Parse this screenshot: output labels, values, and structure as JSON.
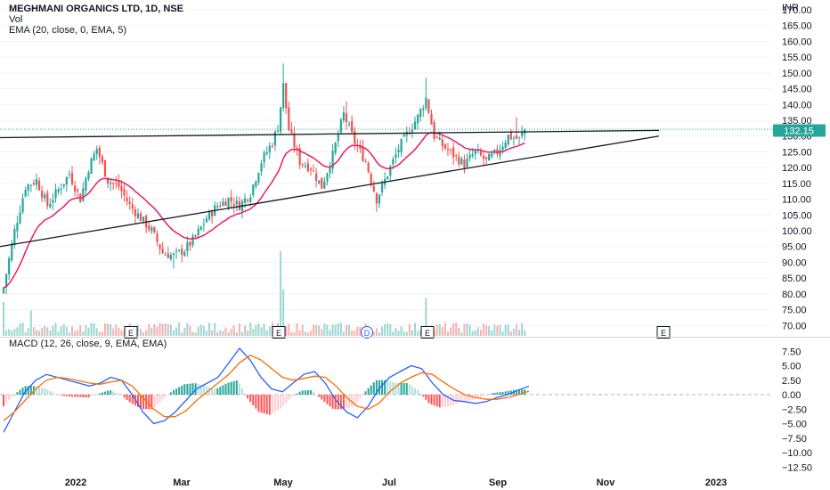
{
  "header": {
    "title": "MEGHMANI ORGANICS LTD, 1D, NSE",
    "volume_label": "Vol",
    "ema_label": "EMA (20, close, 0, EMA, 5)",
    "macd_label": "MACD (12, 26, close, 9, EMA, EMA)",
    "currency": "INR"
  },
  "price_badge": "132.15",
  "colors": {
    "up": "#26a69a",
    "down": "#ef5350",
    "ema": "#e91e63",
    "macd": "#2962ff",
    "signal": "#ff6d00",
    "badge": "#26a69a",
    "trendline": "#131722"
  },
  "event_markers": [
    "E",
    "E",
    "D",
    "E",
    "E"
  ],
  "chart_data": [
    {
      "type": "candlestick",
      "title": "MEGHMANI ORGANICS LTD, 1D, NSE",
      "x_ticks": [
        "2022",
        "Mar",
        "May",
        "Jul",
        "Sep",
        "Nov",
        "2023"
      ],
      "y_ticks": [
        "170.00",
        "165.00",
        "160.00",
        "155.00",
        "150.00",
        "145.00",
        "140.00",
        "135.00",
        "130.00",
        "125.00",
        "120.00",
        "115.00",
        "110.00",
        "105.00",
        "100.00",
        "95.00",
        "90.00",
        "85.00",
        "80.00",
        "75.00",
        "70.00"
      ],
      "ylim": [
        67,
        170
      ],
      "last_price": 132.15,
      "resistance_level": 131.5,
      "support_line": {
        "start": 95,
        "end": 130
      },
      "price_anchors": [
        {
          "i": 0,
          "v": 82
        },
        {
          "i": 4,
          "v": 100
        },
        {
          "i": 8,
          "v": 114
        },
        {
          "i": 12,
          "v": 116
        },
        {
          "i": 16,
          "v": 108
        },
        {
          "i": 20,
          "v": 113
        },
        {
          "i": 24,
          "v": 118
        },
        {
          "i": 28,
          "v": 110
        },
        {
          "i": 31,
          "v": 120
        },
        {
          "i": 34,
          "v": 126
        },
        {
          "i": 38,
          "v": 116
        },
        {
          "i": 42,
          "v": 114
        },
        {
          "i": 46,
          "v": 108
        },
        {
          "i": 50,
          "v": 104
        },
        {
          "i": 54,
          "v": 100
        },
        {
          "i": 58,
          "v": 93
        },
        {
          "i": 62,
          "v": 92
        },
        {
          "i": 66,
          "v": 94
        },
        {
          "i": 70,
          "v": 98
        },
        {
          "i": 74,
          "v": 104
        },
        {
          "i": 78,
          "v": 108
        },
        {
          "i": 82,
          "v": 110
        },
        {
          "i": 86,
          "v": 108
        },
        {
          "i": 90,
          "v": 112
        },
        {
          "i": 94,
          "v": 122
        },
        {
          "i": 98,
          "v": 128
        },
        {
          "i": 100,
          "v": 133
        },
        {
          "i": 102,
          "v": 146
        },
        {
          "i": 104,
          "v": 132
        },
        {
          "i": 108,
          "v": 122
        },
        {
          "i": 112,
          "v": 120
        },
        {
          "i": 116,
          "v": 114
        },
        {
          "i": 120,
          "v": 124
        },
        {
          "i": 124,
          "v": 137
        },
        {
          "i": 128,
          "v": 128
        },
        {
          "i": 132,
          "v": 122
        },
        {
          "i": 136,
          "v": 110
        },
        {
          "i": 140,
          "v": 118
        },
        {
          "i": 144,
          "v": 126
        },
        {
          "i": 148,
          "v": 132
        },
        {
          "i": 151,
          "v": 136
        },
        {
          "i": 154,
          "v": 142
        },
        {
          "i": 157,
          "v": 130
        },
        {
          "i": 160,
          "v": 127
        },
        {
          "i": 164,
          "v": 124
        },
        {
          "i": 168,
          "v": 121
        },
        {
          "i": 172,
          "v": 125
        },
        {
          "i": 176,
          "v": 122
        },
        {
          "i": 180,
          "v": 125
        },
        {
          "i": 184,
          "v": 130
        },
        {
          "i": 188,
          "v": 129
        },
        {
          "i": 190,
          "v": 132
        }
      ],
      "volume_spikes": [
        {
          "i": 101,
          "v": 1.0
        },
        {
          "i": 102,
          "v": 0.55
        },
        {
          "i": 154,
          "v": 0.45
        },
        {
          "i": 0,
          "v": 0.4
        },
        {
          "i": 10,
          "v": 0.3
        }
      ],
      "ema_period": 20
    },
    {
      "type": "line",
      "title": "MACD (12, 26, close, 9, EMA, EMA)",
      "y_ticks": [
        "7.50",
        "5.00",
        "2.50",
        "0.00",
        "−2.50",
        "−5.00",
        "−7.50",
        "−10.00",
        "−12.50"
      ],
      "ylim": [
        -12.5,
        7.5
      ],
      "series": [
        {
          "name": "MACD",
          "values": [
            -6.5,
            -3,
            0.5,
            2.5,
            3.5,
            3,
            2.5,
            2,
            1.5,
            2,
            3,
            2.5,
            0,
            -3,
            -5,
            -4.5,
            -3,
            -1,
            1,
            2,
            3,
            5.5,
            8,
            6,
            3,
            1,
            0.5,
            2,
            3.5,
            4,
            2,
            -1,
            -3,
            -4,
            -2,
            1,
            3,
            4,
            5,
            4.5,
            2,
            0,
            -1,
            -1.2,
            -1.5,
            -1.2,
            -0.5,
            0,
            0.8,
            1.5
          ]
        },
        {
          "name": "Signal",
          "values": [
            -4.5,
            -3,
            -1,
            1,
            2.5,
            3,
            2.8,
            2.4,
            2,
            1.8,
            2.2,
            2.5,
            1.5,
            -0.5,
            -2.5,
            -3.8,
            -3.8,
            -2.8,
            -1,
            0.5,
            2,
            3.5,
            5.5,
            6.8,
            6,
            4.5,
            3,
            2.5,
            2.8,
            3.2,
            3,
            1.5,
            -0.5,
            -2,
            -2.5,
            -1.5,
            0.5,
            2,
            3,
            3.8,
            3.5,
            2.2,
            1,
            0,
            -0.5,
            -0.8,
            -0.8,
            -0.5,
            0,
            0.6
          ]
        }
      ]
    }
  ]
}
